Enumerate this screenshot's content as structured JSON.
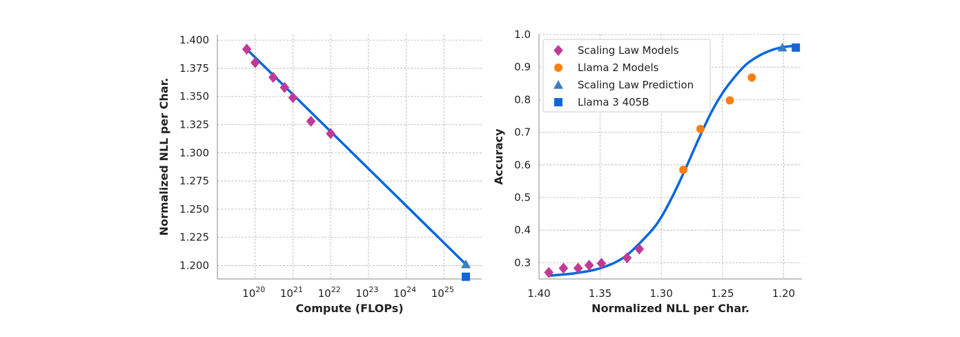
{
  "chart_data": [
    {
      "type": "scatter",
      "xlabel": "Compute (FLOPs)",
      "ylabel": "Normalized NLL per Char.",
      "xscale": "log",
      "xlim": [
        1e+19,
        1e+26
      ],
      "ylim": [
        1.188,
        1.405
      ],
      "grid": true,
      "x_ticks": [
        {
          "value": 1e+20,
          "base": "10",
          "exp": "20"
        },
        {
          "value": 1e+21,
          "base": "10",
          "exp": "21"
        },
        {
          "value": 1e+22,
          "base": "10",
          "exp": "22"
        },
        {
          "value": 1e+23,
          "base": "10",
          "exp": "23"
        },
        {
          "value": 1e+24,
          "base": "10",
          "exp": "24"
        },
        {
          "value": 1e+25,
          "base": "10",
          "exp": "25"
        }
      ],
      "y_ticks": [
        "1.200",
        "1.225",
        "1.250",
        "1.275",
        "1.300",
        "1.325",
        "1.350",
        "1.375",
        "1.400"
      ],
      "fit_line": {
        "x": [
          6e+19,
          3.8e+25
        ],
        "y": [
          1.392,
          1.201
        ],
        "color": "#0066dd"
      },
      "series": [
        {
          "name": "Scaling Law Models",
          "marker": "diamond",
          "color": "#c03a98",
          "x": [
            6e+19,
            1e+20,
            3e+20,
            6e+20,
            1e+21,
            3e+21,
            1e+22
          ],
          "y": [
            1.392,
            1.38,
            1.367,
            1.358,
            1.349,
            1.328,
            1.317
          ]
        },
        {
          "name": "Scaling Law Prediction",
          "marker": "triangle",
          "color": "#3a7fc1",
          "x": [
            3.8e+25
          ],
          "y": [
            1.201
          ]
        },
        {
          "name": "Llama 3 405B",
          "marker": "square",
          "color": "#1565d8",
          "x": [
            3.8e+25
          ],
          "y": [
            1.19
          ]
        }
      ]
    },
    {
      "type": "scatter",
      "xlabel": "Normalized NLL per Char.",
      "ylabel": "Accuracy",
      "xlim": [
        1.4,
        1.185
      ],
      "ylim": [
        0.25,
        1.0
      ],
      "grid": true,
      "x_ticks": [
        "1.40",
        "1.35",
        "1.30",
        "1.25",
        "1.20"
      ],
      "y_ticks": [
        "0.3",
        "0.4",
        "0.5",
        "0.6",
        "0.7",
        "0.8",
        "0.9",
        "1.0"
      ],
      "fit_curve": {
        "x": [
          1.392,
          1.37,
          1.35,
          1.33,
          1.31,
          1.3,
          1.29,
          1.28,
          1.27,
          1.26,
          1.25,
          1.24,
          1.23,
          1.22,
          1.21,
          1.201,
          1.19
        ],
        "y": [
          0.26,
          0.268,
          0.283,
          0.318,
          0.39,
          0.44,
          0.51,
          0.59,
          0.675,
          0.755,
          0.82,
          0.87,
          0.91,
          0.935,
          0.952,
          0.961,
          0.966
        ],
        "color": "#0066dd"
      },
      "legend_position": "top-left",
      "series": [
        {
          "name": "Scaling Law Models",
          "marker": "diamond",
          "color": "#c03a98",
          "x": [
            1.392,
            1.38,
            1.368,
            1.359,
            1.349,
            1.328,
            1.318
          ],
          "y": [
            0.27,
            0.283,
            0.283,
            0.292,
            0.298,
            0.315,
            0.342
          ]
        },
        {
          "name": "Llama 2 Models",
          "marker": "circle",
          "color": "#ff7f0e",
          "x": [
            1.282,
            1.268,
            1.244,
            1.226
          ],
          "y": [
            0.585,
            0.71,
            0.798,
            0.868
          ]
        },
        {
          "name": "Scaling Law Prediction",
          "marker": "triangle",
          "color": "#3a7fc1",
          "x": [
            1.201
          ],
          "y": [
            0.96
          ]
        },
        {
          "name": "Llama 3 405B",
          "marker": "square",
          "color": "#1565d8",
          "x": [
            1.19
          ],
          "y": [
            0.96
          ]
        }
      ]
    }
  ]
}
